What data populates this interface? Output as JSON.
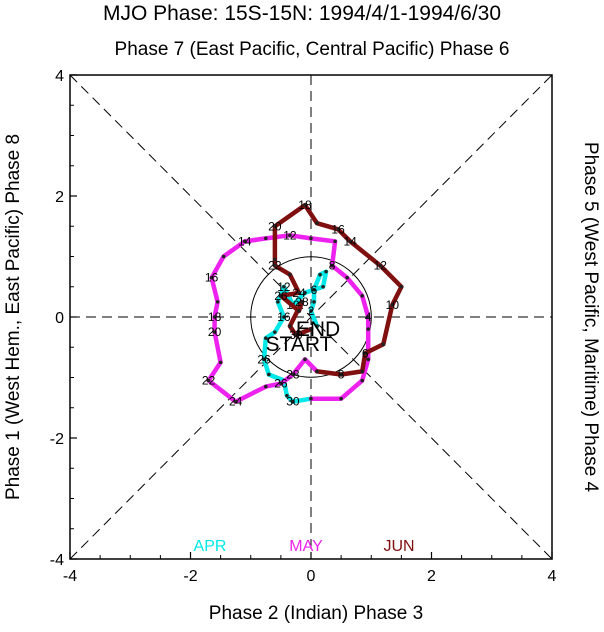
{
  "chart_data": {
    "type": "line",
    "title": "MJO Phase: 15S-15N: 1994/4/1-1994/6/30",
    "top_label": "Phase 7 (East Pacific, Central Pacific) Phase 6",
    "bottom_label": "Phase 2 (Indian) Phase 3",
    "left_label": "Phase 1 (West Hem., East Pacific) Phase 8",
    "right_label": "Phase 5 (West Pacific, Maritime) Phase 4",
    "xlim": [
      -4,
      4
    ],
    "ylim": [
      -4,
      4
    ],
    "x_ticks": [
      -4,
      -2,
      0,
      2,
      4
    ],
    "y_ticks": [
      -4,
      -2,
      0,
      2,
      4
    ],
    "x_tick_labels": [
      "-4",
      "-2",
      "0",
      "2",
      "4"
    ],
    "y_tick_labels": [
      "-4",
      "-2",
      "0",
      "2",
      "4"
    ],
    "end_label": "END",
    "start_label": "START",
    "series": [
      {
        "name": "APR",
        "color": "#00e8e8",
        "points": [
          {
            "x": 0.1,
            "y": -0.15,
            "label": ""
          },
          {
            "x": 0.0,
            "y": 0.1,
            "label": "2"
          },
          {
            "x": 0.05,
            "y": 0.25,
            "label": ""
          },
          {
            "x": 0.05,
            "y": 0.45,
            "label": "6"
          },
          {
            "x": 0.15,
            "y": 0.7,
            "label": ""
          },
          {
            "x": 0.25,
            "y": 0.75,
            "label": ""
          },
          {
            "x": 0.2,
            "y": 0.5,
            "label": ""
          },
          {
            "x": -0.1,
            "y": 0.4,
            "label": ""
          },
          {
            "x": -0.3,
            "y": 0.2,
            "label": "10"
          },
          {
            "x": -0.45,
            "y": 0.5,
            "label": "12"
          },
          {
            "x": -0.55,
            "y": 0.25,
            "label": ""
          },
          {
            "x": -0.45,
            "y": 0.0,
            "label": "16"
          },
          {
            "x": -0.6,
            "y": -0.25,
            "label": ""
          },
          {
            "x": -0.75,
            "y": -0.35,
            "label": ""
          },
          {
            "x": -0.78,
            "y": -0.7,
            "label": "26"
          },
          {
            "x": -0.7,
            "y": -0.95,
            "label": ""
          },
          {
            "x": -0.45,
            "y": -1.05,
            "label": ""
          },
          {
            "x": -0.4,
            "y": -1.3,
            "label": ""
          },
          {
            "x": -0.3,
            "y": -1.4,
            "label": "30"
          },
          {
            "x": 0.0,
            "y": -1.35,
            "label": ""
          }
        ]
      },
      {
        "name": "MAY",
        "color": "#ee22ee",
        "points": [
          {
            "x": 0.0,
            "y": -1.35,
            "label": ""
          },
          {
            "x": 0.5,
            "y": -1.35,
            "label": ""
          },
          {
            "x": 0.85,
            "y": -1.05,
            "label": ""
          },
          {
            "x": 0.95,
            "y": -0.7,
            "label": ""
          },
          {
            "x": 0.95,
            "y": -0.2,
            "label": ""
          },
          {
            "x": 0.95,
            "y": 0.0,
            "label": "4"
          },
          {
            "x": 0.85,
            "y": 0.35,
            "label": ""
          },
          {
            "x": 0.6,
            "y": 0.65,
            "label": ""
          },
          {
            "x": 0.35,
            "y": 0.85,
            "label": "8"
          },
          {
            "x": 0.4,
            "y": 1.25,
            "label": ""
          },
          {
            "x": 0.0,
            "y": 1.3,
            "label": ""
          },
          {
            "x": -0.35,
            "y": 1.35,
            "label": "12"
          },
          {
            "x": -0.75,
            "y": 1.3,
            "label": ""
          },
          {
            "x": -1.1,
            "y": 1.25,
            "label": "14"
          },
          {
            "x": -1.45,
            "y": 1.0,
            "label": ""
          },
          {
            "x": -1.65,
            "y": 0.65,
            "label": "16"
          },
          {
            "x": -1.55,
            "y": 0.25,
            "label": ""
          },
          {
            "x": -1.6,
            "y": 0.0,
            "label": "18"
          },
          {
            "x": -1.6,
            "y": -0.25,
            "label": "20"
          },
          {
            "x": -1.5,
            "y": -0.75,
            "label": ""
          },
          {
            "x": -1.7,
            "y": -1.05,
            "label": "22"
          },
          {
            "x": -1.25,
            "y": -1.4,
            "label": "24"
          },
          {
            "x": -0.75,
            "y": -1.15,
            "label": ""
          },
          {
            "x": -0.5,
            "y": -1.1,
            "label": "26"
          },
          {
            "x": -0.3,
            "y": -0.95,
            "label": "28"
          },
          {
            "x": -0.1,
            "y": -0.7,
            "label": ""
          },
          {
            "x": 0.1,
            "y": -0.9,
            "label": ""
          }
        ]
      },
      {
        "name": "JUN",
        "color": "#801010",
        "points": [
          {
            "x": 0.1,
            "y": -0.9,
            "label": ""
          },
          {
            "x": 0.5,
            "y": -0.95,
            "label": "8"
          },
          {
            "x": 0.85,
            "y": -0.9,
            "label": ""
          },
          {
            "x": 0.9,
            "y": -0.6,
            "label": "6"
          },
          {
            "x": 1.2,
            "y": -0.45,
            "label": ""
          },
          {
            "x": 1.35,
            "y": 0.2,
            "label": "10"
          },
          {
            "x": 1.5,
            "y": 0.5,
            "label": ""
          },
          {
            "x": 1.15,
            "y": 0.85,
            "label": "12"
          },
          {
            "x": 0.65,
            "y": 1.25,
            "label": "14"
          },
          {
            "x": 0.45,
            "y": 1.45,
            "label": "16"
          },
          {
            "x": 0.1,
            "y": 1.55,
            "label": ""
          },
          {
            "x": -0.1,
            "y": 1.85,
            "label": "18"
          },
          {
            "x": -0.6,
            "y": 1.5,
            "label": "20"
          },
          {
            "x": -0.6,
            "y": 0.95,
            "label": ""
          },
          {
            "x": -0.6,
            "y": 0.85,
            "label": "22"
          },
          {
            "x": -0.35,
            "y": 0.7,
            "label": ""
          },
          {
            "x": -0.2,
            "y": 0.4,
            "label": "24"
          },
          {
            "x": -0.5,
            "y": 0.35,
            "label": "26"
          },
          {
            "x": -0.2,
            "y": 0.1,
            "label": ""
          },
          {
            "x": -0.15,
            "y": 0.25,
            "label": "28"
          },
          {
            "x": -0.35,
            "y": -0.15,
            "label": ""
          },
          {
            "x": -0.25,
            "y": -0.3,
            "label": "30"
          },
          {
            "x": 0.0,
            "y": -0.2,
            "label": ""
          }
        ]
      }
    ]
  }
}
